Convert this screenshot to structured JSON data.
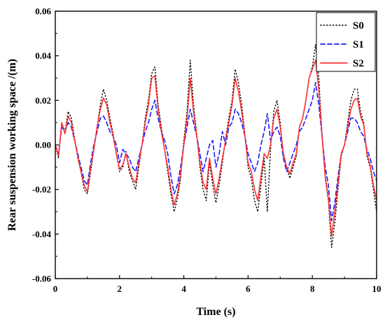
{
  "chart_data": {
    "type": "line",
    "title": "",
    "xlabel": "Time (s)",
    "ylabel": "Rear suspension working space /(m)",
    "xlim": [
      0,
      10
    ],
    "ylim": [
      -0.06,
      0.06
    ],
    "xticks": [
      0,
      2,
      4,
      6,
      8,
      10
    ],
    "xtick_labels": [
      "0",
      "2",
      "4",
      "6",
      "8",
      "10"
    ],
    "yticks": [
      -0.06,
      -0.04,
      -0.02,
      0.0,
      0.02,
      0.04,
      0.06
    ],
    "ytick_labels": [
      "-0.06",
      "-0.04",
      "-0.02",
      "0.00",
      "0.02",
      "0.04",
      "0.06"
    ],
    "grid": false,
    "legend_position": "top-right",
    "x": [
      0,
      0.1,
      0.2,
      0.3,
      0.4,
      0.5,
      0.6,
      0.7,
      0.8,
      0.9,
      1.0,
      1.1,
      1.2,
      1.3,
      1.4,
      1.5,
      1.6,
      1.7,
      1.8,
      1.9,
      2.0,
      2.1,
      2.2,
      2.3,
      2.4,
      2.5,
      2.6,
      2.7,
      2.8,
      2.9,
      3.0,
      3.1,
      3.2,
      3.3,
      3.4,
      3.5,
      3.6,
      3.7,
      3.8,
      3.9,
      4.0,
      4.1,
      4.2,
      4.3,
      4.4,
      4.5,
      4.6,
      4.7,
      4.8,
      4.9,
      5.0,
      5.1,
      5.2,
      5.3,
      5.4,
      5.5,
      5.6,
      5.7,
      5.8,
      5.9,
      6.0,
      6.1,
      6.2,
      6.3,
      6.4,
      6.5,
      6.6,
      6.7,
      6.8,
      6.9,
      7.0,
      7.1,
      7.2,
      7.3,
      7.4,
      7.5,
      7.6,
      7.7,
      7.8,
      7.9,
      8.0,
      8.1,
      8.2,
      8.3,
      8.4,
      8.5,
      8.6,
      8.7,
      8.8,
      8.9,
      9.0,
      9.1,
      9.2,
      9.3,
      9.4,
      9.5,
      9.6,
      9.7,
      9.8,
      9.9,
      10.0
    ],
    "series": [
      {
        "name": "S0",
        "color": "#000000",
        "style": "dotted",
        "values": [
          0.0,
          -0.006,
          0.01,
          0.006,
          0.015,
          0.012,
          0.003,
          -0.006,
          -0.012,
          -0.02,
          -0.022,
          -0.012,
          -0.002,
          0.008,
          0.018,
          0.025,
          0.02,
          0.012,
          0.005,
          -0.004,
          -0.012,
          -0.01,
          -0.003,
          -0.012,
          -0.016,
          -0.02,
          -0.01,
          0.0,
          0.012,
          0.02,
          0.032,
          0.035,
          0.018,
          0.008,
          -0.002,
          -0.012,
          -0.022,
          -0.03,
          -0.024,
          -0.015,
          0.002,
          0.015,
          0.038,
          0.018,
          0.005,
          -0.01,
          -0.02,
          -0.025,
          -0.008,
          -0.018,
          -0.026,
          -0.018,
          -0.008,
          0.003,
          0.012,
          0.02,
          0.034,
          0.028,
          0.018,
          0.005,
          -0.01,
          -0.015,
          -0.025,
          -0.03,
          -0.018,
          -0.006,
          -0.03,
          -0.002,
          0.015,
          0.02,
          0.01,
          -0.005,
          -0.01,
          -0.015,
          -0.01,
          -0.005,
          0.008,
          0.012,
          0.02,
          0.03,
          0.035,
          0.045,
          0.03,
          0.005,
          -0.015,
          -0.025,
          -0.046,
          -0.035,
          -0.02,
          -0.005,
          0.0,
          0.01,
          0.02,
          0.025,
          0.025,
          0.015,
          0.01,
          -0.005,
          -0.01,
          -0.02,
          -0.03
        ]
      },
      {
        "name": "S1",
        "color": "#1a1aff",
        "style": "dashed",
        "values": [
          0.0,
          -0.004,
          0.008,
          0.006,
          0.01,
          0.008,
          0.002,
          -0.004,
          -0.01,
          -0.016,
          -0.018,
          -0.008,
          0.0,
          0.006,
          0.012,
          0.013,
          0.01,
          0.006,
          0.004,
          0.0,
          -0.008,
          -0.002,
          -0.004,
          -0.006,
          -0.01,
          -0.012,
          -0.006,
          0.0,
          0.006,
          0.01,
          0.016,
          0.02,
          0.012,
          0.006,
          0.002,
          -0.004,
          -0.014,
          -0.022,
          -0.018,
          -0.01,
          0.0,
          0.008,
          0.016,
          0.01,
          0.004,
          -0.004,
          -0.012,
          -0.006,
          0.0,
          0.002,
          -0.01,
          -0.004,
          0.006,
          0.0,
          0.008,
          0.01,
          0.016,
          0.014,
          0.01,
          0.004,
          -0.004,
          -0.008,
          -0.012,
          -0.008,
          0.0,
          0.006,
          0.014,
          0.002,
          0.006,
          0.008,
          0.004,
          -0.006,
          -0.012,
          -0.008,
          -0.004,
          0.0,
          0.006,
          0.008,
          0.012,
          0.016,
          0.02,
          0.028,
          0.018,
          0.004,
          -0.01,
          -0.018,
          -0.034,
          -0.026,
          -0.014,
          -0.004,
          0.0,
          0.006,
          0.012,
          0.012,
          0.01,
          0.006,
          0.004,
          -0.002,
          -0.006,
          -0.012,
          -0.016
        ]
      },
      {
        "name": "S2",
        "color": "#ff3333",
        "style": "solid",
        "values": [
          0.0,
          -0.005,
          0.01,
          0.005,
          0.013,
          0.01,
          0.002,
          -0.005,
          -0.012,
          -0.018,
          -0.021,
          -0.01,
          -0.002,
          0.008,
          0.016,
          0.021,
          0.018,
          0.01,
          0.004,
          -0.004,
          -0.011,
          -0.009,
          -0.004,
          -0.01,
          -0.015,
          -0.017,
          -0.008,
          0.0,
          0.01,
          0.018,
          0.03,
          0.031,
          0.016,
          0.006,
          -0.002,
          -0.01,
          -0.02,
          -0.027,
          -0.022,
          -0.013,
          0.0,
          0.012,
          0.03,
          0.015,
          0.004,
          -0.008,
          -0.017,
          -0.02,
          -0.006,
          -0.015,
          -0.022,
          -0.015,
          -0.006,
          0.002,
          0.01,
          0.018,
          0.03,
          0.024,
          0.015,
          0.004,
          -0.008,
          -0.012,
          -0.02,
          -0.025,
          -0.014,
          -0.004,
          -0.006,
          0.0,
          0.012,
          0.016,
          0.008,
          -0.004,
          -0.01,
          -0.013,
          -0.008,
          -0.004,
          0.008,
          0.012,
          0.02,
          0.03,
          0.034,
          0.038,
          0.025,
          0.004,
          -0.014,
          -0.024,
          -0.041,
          -0.03,
          -0.017,
          -0.004,
          0.0,
          0.008,
          0.016,
          0.02,
          0.021,
          0.013,
          0.009,
          -0.004,
          -0.009,
          -0.018,
          -0.025
        ]
      }
    ]
  }
}
